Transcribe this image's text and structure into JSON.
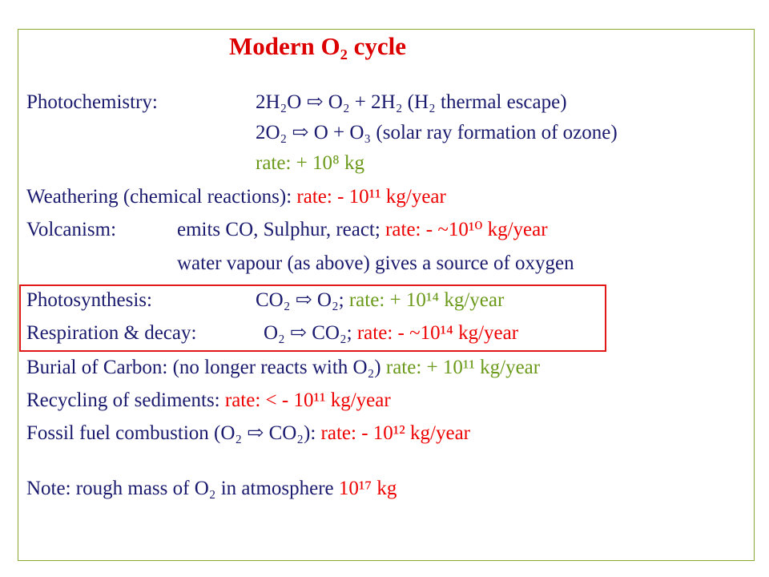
{
  "title": "Modern O₂ cycle",
  "rows": {
    "photochem": {
      "label": "Photochemistry:",
      "eq1": "2H₂O ⇨ O₂ + 2H₂ (H₂ thermal escape)",
      "eq2": "2O₂ ⇨ O + O₃ (solar ray formation of ozone)",
      "rate": "rate: + 10⁸ kg"
    },
    "weathering": {
      "label": "Weathering (chemical reactions):",
      "rate": "rate: - 10¹¹ kg/year"
    },
    "volcanism": {
      "label": "Volcanism:",
      "text": "emits CO, Sulphur, react;",
      "rate": "rate: - ~10¹⁰ kg/year",
      "text2": "water vapour (as above) gives a source of oxygen"
    },
    "photosynthesis": {
      "label": "Photosynthesis:",
      "eq": "CO₂ ⇨ O₂;",
      "rate": "rate: + 10¹⁴ kg/year"
    },
    "respiration": {
      "label": "Respiration & decay:",
      "eq": "O₂ ⇨ CO₂;",
      "rate": "rate: - ~10¹⁴ kg/year"
    },
    "burial": {
      "label": "Burial of Carbon: (no longer reacts with O₂)",
      "rate": "rate: + 10¹¹ kg/year"
    },
    "recycling": {
      "label": "Recycling of sediments:",
      "rate": "rate: < - 10¹¹ kg/year"
    },
    "fossil": {
      "label": "Fossil fuel combustion (O₂ ⇨ CO₂):",
      "rate": "rate: - 10¹² kg/year"
    },
    "note": {
      "label": "Note: rough mass of O₂ in atmosphere",
      "value": "10¹⁷ kg"
    }
  },
  "colors": {
    "text": "#1a1a6e",
    "red": "#ee0000",
    "green": "#6b9a1a",
    "frame": "#8aa832",
    "highlight_box": "#e01818"
  }
}
